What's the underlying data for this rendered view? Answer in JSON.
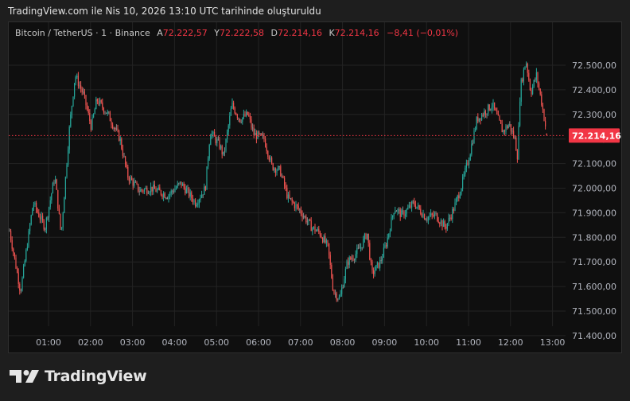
{
  "caption": "TradingView.com ile Nis 10, 2026 13:10 UTC tarihinde oluşturuldu",
  "legend": {
    "symbol": "Bitcoin / TetherUS · 1 · Binance",
    "open_label": "A",
    "open": "72.222,57",
    "high_label": "Y",
    "high": "72.222,58",
    "low_label": "D",
    "low": "72.214,16",
    "close_label": "K",
    "close": "72.214,16",
    "change": "−8,41 (−0,01%)"
  },
  "last_price_tag": "72.214,16",
  "brand": "TradingView",
  "colors": {
    "up": "#26a69a",
    "down": "#ef5350",
    "neutral": "#8a8a8a",
    "price_line": "#f23645",
    "grid": "#232323",
    "panel_bg": "#0f0f0f",
    "page_bg": "#1e1e1e"
  },
  "chart_data": {
    "type": "candlestick",
    "title": "Bitcoin / TetherUS · 1 · Binance",
    "interval": "1 minute",
    "xlabel": "",
    "ylabel": "",
    "x_ticks": [
      "01:00",
      "02:00",
      "03:00",
      "04:00",
      "05:00",
      "06:00",
      "07:00",
      "08:00",
      "09:00",
      "10:00",
      "11:00",
      "12:00",
      "13:00"
    ],
    "y_ticks": [
      "72.500,00",
      "72.400,00",
      "72.300,00",
      "72.200,00",
      "72.100,00",
      "72.000,00",
      "71.900,00",
      "71.800,00",
      "71.700,00",
      "71.600,00",
      "71.500,00",
      "71.400,00"
    ],
    "y_tick_values": [
      72500,
      72400,
      72300,
      72200,
      72100,
      72000,
      71900,
      71800,
      71700,
      71600,
      71500,
      71400
    ],
    "ylim": [
      71330,
      72640
    ],
    "grid": true,
    "last_price": 72214.16,
    "ohlc_last": {
      "open": 72222.57,
      "high": 72222.58,
      "low": 72214.16,
      "close": 72214.16
    },
    "approx_price_path": {
      "time": [
        "00:03",
        "00:20",
        "00:38",
        "00:55",
        "01:09",
        "01:18",
        "01:30",
        "01:38",
        "01:50",
        "02:01",
        "02:09",
        "02:25",
        "02:42",
        "02:53",
        "03:10",
        "03:27",
        "03:50",
        "04:09",
        "04:30",
        "04:44",
        "04:51",
        "05:05",
        "05:10",
        "05:22",
        "05:33",
        "05:45",
        "05:53",
        "06:08",
        "06:19",
        "06:31",
        "06:42",
        "06:59",
        "07:16",
        "07:27",
        "07:39",
        "07:47",
        "07:56",
        "08:07",
        "08:18",
        "08:26",
        "08:35",
        "08:42",
        "08:54",
        "09:03",
        "09:14",
        "09:25",
        "09:42",
        "09:59",
        "10:13",
        "10:27",
        "10:38",
        "10:49",
        "11:01",
        "11:12",
        "11:23",
        "11:34",
        "11:49",
        "11:58",
        "12:06",
        "12:10",
        "12:14",
        "12:22",
        "12:29",
        "12:37",
        "12:45",
        "12:52"
      ],
      "price": [
        71826,
        71580,
        71940,
        71840,
        72050,
        71810,
        72250,
        72460,
        72380,
        72250,
        72360,
        72300,
        72200,
        72050,
        71990,
        72000,
        71970,
        72020,
        71940,
        72000,
        72230,
        72170,
        72130,
        72340,
        72280,
        72300,
        72220,
        72200,
        72090,
        72070,
        71960,
        71910,
        71840,
        71820,
        71760,
        71580,
        71550,
        71700,
        71730,
        71760,
        71820,
        71650,
        71700,
        71780,
        71920,
        71890,
        71940,
        71880,
        71890,
        71840,
        71910,
        72000,
        72130,
        72280,
        72310,
        72340,
        72230,
        72260,
        72200,
        72130,
        72410,
        72520,
        72390,
        72460,
        72340,
        72214
      ]
    },
    "range": {
      "high": 72520,
      "low": 71430
    }
  }
}
